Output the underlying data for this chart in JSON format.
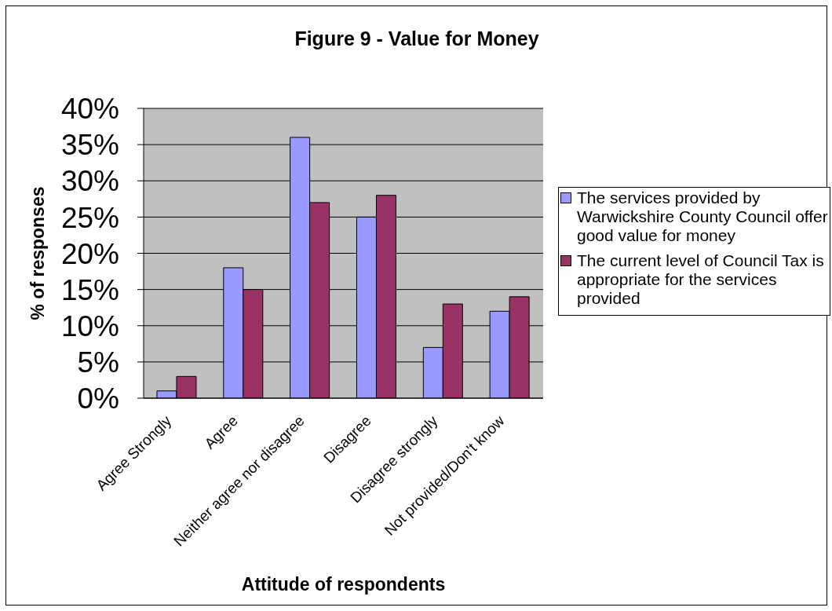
{
  "chart_data": {
    "type": "bar",
    "title": "Figure 9 - Value for Money",
    "xlabel": "Attitude of respondents",
    "ylabel": "% of responses",
    "categories": [
      "Agree Strongly",
      "Agree",
      "Neither agree nor disagree",
      "Disagree",
      "Disagree strongly",
      "Not provided/Don't know"
    ],
    "series": [
      {
        "name": "The services provided by Warwickshire County Council offer good value for money",
        "color": "#9999ff",
        "values": [
          1,
          18,
          36,
          25,
          7,
          12
        ]
      },
      {
        "name": "The current level of Council Tax is appropriate for the services provided",
        "color": "#993366",
        "values": [
          3,
          15,
          27,
          28,
          13,
          14
        ]
      }
    ],
    "ylim": [
      0,
      40
    ],
    "yticks": [
      {
        "value": 0,
        "label": "0%"
      },
      {
        "value": 5,
        "label": "5%"
      },
      {
        "value": 10,
        "label": "10%"
      },
      {
        "value": 15,
        "label": "15%"
      },
      {
        "value": 20,
        "label": "20%"
      },
      {
        "value": 25,
        "label": "25%"
      },
      {
        "value": 30,
        "label": "30%"
      },
      {
        "value": 35,
        "label": "35%"
      },
      {
        "value": 40,
        "label": "40%"
      }
    ],
    "grid": "y",
    "legend": "right"
  }
}
